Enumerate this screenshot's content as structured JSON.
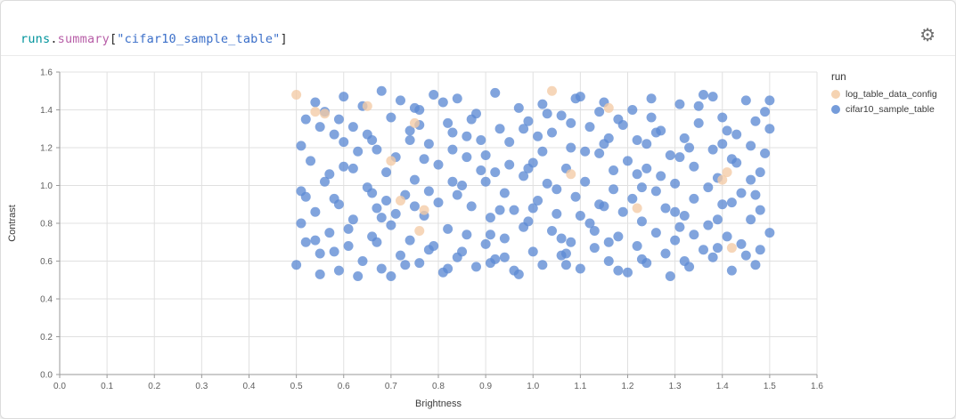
{
  "header": {
    "title": {
      "runs": "runs",
      "dot": ".",
      "summary": "summary",
      "open": "[",
      "string": "\"cifar10_sample_table\"",
      "close": "]"
    },
    "gear_icon": "⚙"
  },
  "colors": {
    "blue": "#5d8bd4",
    "peach": "#f3cba5",
    "grid": "#e0e0e0",
    "axis": "#9a9a9a"
  },
  "legend": {
    "title": "run",
    "items": [
      {
        "label": "log_table_data_config",
        "color": "#f3cba5"
      },
      {
        "label": "cifar10_sample_table",
        "color": "#5d8bd4"
      }
    ]
  },
  "chart_data": {
    "type": "scatter",
    "title": "runs.summary[\"cifar10_sample_table\"]",
    "xlabel": "Brightness",
    "ylabel": "Contrast",
    "xlim": [
      0,
      1.6
    ],
    "ylim": [
      0,
      1.6
    ],
    "xticks": [
      0,
      0.1,
      0.2,
      0.3,
      0.4,
      0.5,
      0.6,
      0.7,
      0.8,
      0.9,
      1.0,
      1.1,
      1.2,
      1.3,
      1.4,
      1.5,
      1.6
    ],
    "yticks": [
      0,
      0.2,
      0.4,
      0.6,
      0.8,
      1.0,
      1.2,
      1.4,
      1.6
    ],
    "grid": true,
    "legend_position": "right",
    "series": [
      {
        "name": "log_table_data_config",
        "color": "#f3cba5",
        "points": [
          [
            0.5,
            1.48
          ],
          [
            0.54,
            1.39
          ],
          [
            0.56,
            1.38
          ],
          [
            0.65,
            1.42
          ],
          [
            0.7,
            1.13
          ],
          [
            0.72,
            0.92
          ],
          [
            0.75,
            1.33
          ],
          [
            0.76,
            0.76
          ],
          [
            0.77,
            0.87
          ],
          [
            1.04,
            1.5
          ],
          [
            1.08,
            1.06
          ],
          [
            1.16,
            1.41
          ],
          [
            1.22,
            0.88
          ],
          [
            1.4,
            1.03
          ],
          [
            1.41,
            1.07
          ],
          [
            1.42,
            0.67
          ]
        ]
      },
      {
        "name": "cifar10_sample_table",
        "color": "#5d8bd4",
        "points": [
          [
            0.5,
            0.58
          ],
          [
            0.51,
            1.21
          ],
          [
            0.51,
            0.97
          ],
          [
            0.52,
            1.35
          ],
          [
            0.52,
            0.7
          ],
          [
            0.53,
            1.13
          ],
          [
            0.54,
            0.86
          ],
          [
            0.54,
            1.44
          ],
          [
            0.55,
            0.64
          ],
          [
            0.56,
            1.02
          ],
          [
            0.56,
            1.39
          ],
          [
            0.57,
            0.75
          ],
          [
            0.58,
            1.27
          ],
          [
            0.58,
            0.93
          ],
          [
            0.59,
            0.55
          ],
          [
            0.6,
            1.47
          ],
          [
            0.6,
            1.1
          ],
          [
            0.61,
            0.68
          ],
          [
            0.62,
            1.31
          ],
          [
            0.62,
            0.82
          ],
          [
            0.63,
            1.18
          ],
          [
            0.64,
            0.6
          ],
          [
            0.64,
            1.42
          ],
          [
            0.65,
            0.99
          ],
          [
            0.66,
            0.73
          ],
          [
            0.66,
            1.24
          ],
          [
            0.67,
            0.88
          ],
          [
            0.68,
            1.5
          ],
          [
            0.68,
            0.56
          ],
          [
            0.69,
            1.07
          ],
          [
            0.7,
            1.36
          ],
          [
            0.7,
            0.79
          ],
          [
            0.71,
            1.15
          ],
          [
            0.72,
            0.63
          ],
          [
            0.72,
            1.45
          ],
          [
            0.73,
            0.95
          ],
          [
            0.74,
            1.29
          ],
          [
            0.74,
            0.71
          ],
          [
            0.75,
            1.03
          ],
          [
            0.76,
            0.59
          ],
          [
            0.76,
            1.4
          ],
          [
            0.77,
            0.84
          ],
          [
            0.78,
            1.22
          ],
          [
            0.78,
            0.66
          ],
          [
            0.79,
            1.48
          ],
          [
            0.8,
            1.11
          ],
          [
            0.8,
            0.91
          ],
          [
            0.81,
            0.54
          ],
          [
            0.82,
            1.33
          ],
          [
            0.82,
            0.77
          ],
          [
            0.83,
            1.19
          ],
          [
            0.84,
            0.62
          ],
          [
            0.84,
            1.46
          ],
          [
            0.85,
            1.0
          ],
          [
            0.86,
            0.74
          ],
          [
            0.86,
            1.26
          ],
          [
            0.87,
            0.89
          ],
          [
            0.88,
            0.57
          ],
          [
            0.88,
            1.38
          ],
          [
            0.89,
            1.08
          ],
          [
            0.9,
            0.69
          ],
          [
            0.9,
            1.16
          ],
          [
            0.91,
            0.83
          ],
          [
            0.92,
            1.49
          ],
          [
            0.92,
            0.61
          ],
          [
            0.93,
            1.3
          ],
          [
            0.94,
            0.96
          ],
          [
            0.94,
            0.72
          ],
          [
            0.95,
            1.23
          ],
          [
            0.96,
            0.87
          ],
          [
            0.96,
            0.55
          ],
          [
            0.97,
            1.41
          ],
          [
            0.98,
            1.05
          ],
          [
            0.98,
            0.78
          ],
          [
            0.99,
            1.34
          ],
          [
            1.0,
            0.65
          ],
          [
            1.0,
            1.12
          ],
          [
            1.01,
            0.92
          ],
          [
            1.02,
            0.58
          ],
          [
            1.02,
            1.43
          ],
          [
            1.03,
            1.01
          ],
          [
            1.04,
            0.76
          ],
          [
            1.04,
            1.28
          ],
          [
            1.05,
            0.85
          ],
          [
            1.06,
            0.63
          ],
          [
            1.06,
            1.37
          ],
          [
            1.07,
            1.09
          ],
          [
            1.08,
            0.7
          ],
          [
            1.08,
            1.2
          ],
          [
            1.09,
            0.94
          ],
          [
            1.1,
            0.56
          ],
          [
            1.1,
            1.47
          ],
          [
            1.11,
            1.02
          ],
          [
            1.12,
            0.8
          ],
          [
            1.12,
            1.31
          ],
          [
            1.13,
            0.67
          ],
          [
            1.14,
            1.17
          ],
          [
            1.14,
            0.9
          ],
          [
            1.15,
            1.44
          ],
          [
            1.16,
            0.6
          ],
          [
            1.16,
            1.25
          ],
          [
            1.17,
            0.98
          ],
          [
            1.18,
            0.73
          ],
          [
            1.18,
            1.35
          ],
          [
            1.19,
            0.86
          ],
          [
            1.2,
            0.54
          ],
          [
            1.2,
            1.13
          ],
          [
            1.21,
            1.4
          ],
          [
            1.22,
            0.68
          ],
          [
            1.22,
            1.06
          ],
          [
            1.23,
            0.81
          ],
          [
            1.24,
            1.22
          ],
          [
            1.24,
            0.59
          ],
          [
            1.25,
            1.46
          ],
          [
            1.26,
            0.97
          ],
          [
            1.26,
            0.75
          ],
          [
            1.27,
            1.29
          ],
          [
            1.28,
            0.88
          ],
          [
            1.28,
            0.64
          ],
          [
            1.29,
            1.16
          ],
          [
            1.3,
            1.01
          ],
          [
            1.3,
            0.71
          ],
          [
            1.31,
            1.43
          ],
          [
            1.32,
            0.84
          ],
          [
            1.32,
            1.25
          ],
          [
            1.33,
            0.57
          ],
          [
            1.34,
            1.1
          ],
          [
            1.34,
            0.93
          ],
          [
            1.35,
            1.33
          ],
          [
            1.36,
            0.66
          ],
          [
            1.36,
            1.48
          ],
          [
            1.37,
            0.79
          ],
          [
            1.38,
            1.19
          ],
          [
            1.38,
            0.62
          ],
          [
            1.39,
            1.04
          ],
          [
            1.4,
            0.9
          ],
          [
            1.4,
            1.36
          ],
          [
            1.41,
            0.73
          ],
          [
            1.42,
            1.14
          ],
          [
            1.42,
            0.55
          ],
          [
            1.43,
            1.27
          ],
          [
            1.44,
            0.96
          ],
          [
            1.44,
            0.69
          ],
          [
            1.45,
            1.45
          ],
          [
            1.46,
            0.82
          ],
          [
            1.46,
            1.21
          ],
          [
            1.47,
            0.58
          ],
          [
            1.48,
            1.07
          ],
          [
            1.48,
            0.87
          ],
          [
            1.49,
            1.39
          ],
          [
            1.5,
            0.75
          ],
          [
            1.5,
            1.3
          ],
          [
            0.55,
            1.31
          ],
          [
            0.59,
            0.9
          ],
          [
            0.63,
            0.52
          ],
          [
            0.67,
            1.19
          ],
          [
            0.71,
            0.85
          ],
          [
            0.75,
            1.41
          ],
          [
            0.79,
            0.68
          ],
          [
            0.83,
            1.02
          ],
          [
            0.87,
            1.35
          ],
          [
            0.91,
            0.59
          ],
          [
            0.95,
            1.11
          ],
          [
            0.99,
            0.81
          ],
          [
            1.03,
            1.38
          ],
          [
            1.07,
            0.64
          ],
          [
            1.11,
            1.18
          ],
          [
            1.15,
            0.89
          ],
          [
            1.19,
            1.32
          ],
          [
            1.23,
            0.61
          ],
          [
            1.27,
            1.05
          ],
          [
            1.31,
            0.78
          ],
          [
            1.35,
            1.42
          ],
          [
            1.39,
            0.67
          ],
          [
            1.43,
            1.12
          ],
          [
            1.47,
            0.95
          ],
          [
            0.57,
            1.06
          ],
          [
            0.61,
            0.77
          ],
          [
            0.65,
            1.27
          ],
          [
            0.69,
            0.92
          ],
          [
            0.73,
            0.58
          ],
          [
            0.77,
            1.14
          ],
          [
            0.81,
            1.44
          ],
          [
            0.85,
            0.65
          ],
          [
            0.89,
            1.24
          ],
          [
            0.93,
            0.87
          ],
          [
            0.97,
            0.53
          ],
          [
            1.01,
            1.26
          ],
          [
            1.05,
            0.98
          ],
          [
            1.09,
            1.46
          ],
          [
            1.13,
            0.76
          ],
          [
            1.17,
            1.08
          ],
          [
            1.21,
            0.93
          ],
          [
            1.25,
            1.36
          ],
          [
            1.29,
            0.52
          ],
          [
            1.33,
            1.2
          ],
          [
            1.37,
            0.99
          ],
          [
            1.41,
            1.29
          ],
          [
            1.45,
            0.63
          ],
          [
            1.49,
            1.17
          ],
          [
            0.52,
            0.94
          ],
          [
            0.6,
            1.23
          ],
          [
            0.68,
            0.83
          ],
          [
            0.76,
            1.32
          ],
          [
            0.84,
            0.95
          ],
          [
            0.92,
            1.07
          ],
          [
            1.0,
            0.88
          ],
          [
            1.08,
            1.33
          ],
          [
            1.16,
            0.7
          ],
          [
            1.24,
            1.09
          ],
          [
            1.32,
            0.6
          ],
          [
            1.4,
            1.22
          ],
          [
            1.48,
            0.66
          ],
          [
            0.54,
            0.71
          ],
          [
            0.62,
            1.09
          ],
          [
            0.7,
            0.52
          ],
          [
            0.78,
            0.97
          ],
          [
            0.86,
            1.15
          ],
          [
            0.94,
            0.62
          ],
          [
            1.02,
            1.18
          ],
          [
            1.1,
            0.84
          ],
          [
            1.18,
            0.55
          ],
          [
            1.26,
            1.28
          ],
          [
            1.34,
            0.74
          ],
          [
            1.42,
            0.91
          ],
          [
            1.5,
            1.45
          ],
          [
            0.58,
            0.65
          ],
          [
            0.66,
            0.96
          ],
          [
            0.74,
            1.24
          ],
          [
            0.82,
            0.56
          ],
          [
            0.9,
            1.02
          ],
          [
            0.98,
            1.3
          ],
          [
            1.06,
            0.72
          ],
          [
            1.14,
            1.39
          ],
          [
            1.22,
            1.24
          ],
          [
            1.3,
            0.86
          ],
          [
            1.38,
            1.47
          ],
          [
            1.46,
            1.03
          ],
          [
            0.51,
            0.8
          ],
          [
            0.59,
            1.35
          ],
          [
            0.67,
            0.7
          ],
          [
            0.75,
            0.89
          ],
          [
            0.83,
            1.28
          ],
          [
            0.91,
            0.74
          ],
          [
            0.99,
            1.09
          ],
          [
            1.07,
            0.58
          ],
          [
            1.15,
            1.22
          ],
          [
            1.23,
            0.99
          ],
          [
            1.31,
            1.15
          ],
          [
            1.39,
            0.82
          ],
          [
            1.47,
            1.34
          ],
          [
            0.55,
            0.53
          ]
        ]
      }
    ]
  }
}
